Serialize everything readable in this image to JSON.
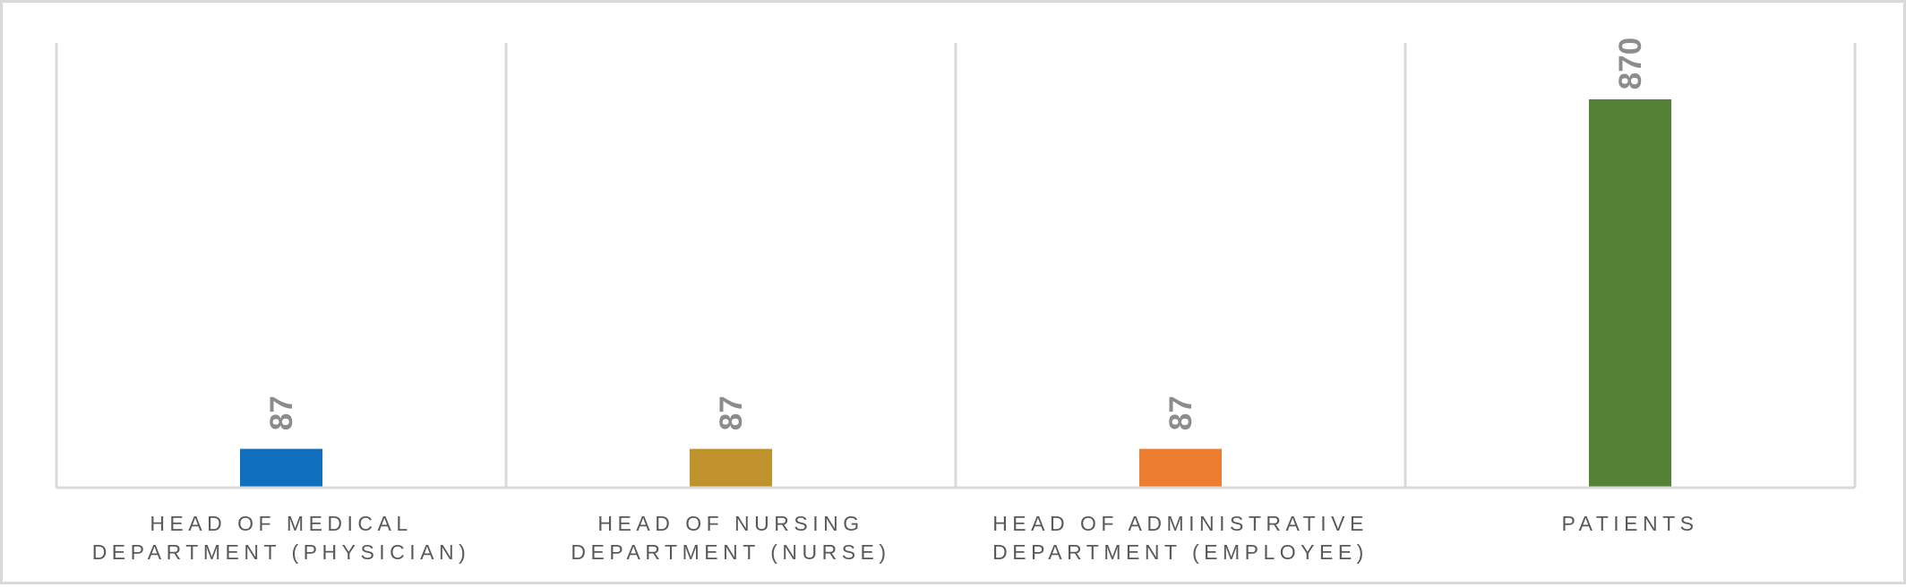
{
  "chart_data": {
    "type": "bar",
    "title": "",
    "xlabel": "",
    "ylabel": "",
    "categories": [
      [
        "HEAD OF MEDICAL",
        "DEPARTMENT (PHYSICIAN)"
      ],
      [
        "HEAD OF NURSING",
        "DEPARTMENT (NURSE)"
      ],
      [
        "HEAD OF ADMINISTRATIVE",
        "DEPARTMENT (EMPLOYEE)"
      ],
      [
        "PATIENTS"
      ]
    ],
    "values": [
      87,
      87,
      87,
      870
    ],
    "colors": [
      "#1170bd",
      "#c0922c",
      "#ed7d31",
      "#538135"
    ],
    "ylim": [
      0,
      1000
    ],
    "grid": "vertical category separators",
    "legend": "none"
  }
}
